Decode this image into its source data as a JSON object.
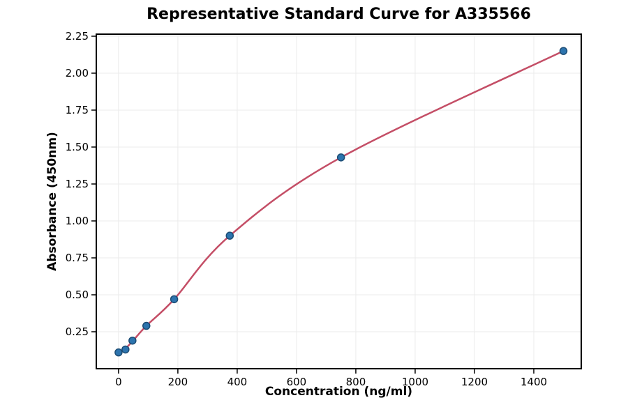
{
  "chart_data": {
    "type": "scatter",
    "title": "Representative Standard Curve for A335566",
    "xlabel": "Concentration (ng/ml)",
    "ylabel": "Absorbance (450nm)",
    "grid": true,
    "legend": "none",
    "xlim": [
      -75,
      1560
    ],
    "ylim": [
      0,
      2.264
    ],
    "x_ticks": [
      0,
      200,
      400,
      600,
      800,
      1000,
      1200,
      1400
    ],
    "x_tick_labels": [
      "0",
      "200",
      "400",
      "600",
      "800",
      "1000",
      "1200",
      "1400"
    ],
    "y_ticks": [
      0.25,
      0.5,
      0.75,
      1.0,
      1.25,
      1.5,
      1.75,
      2.0,
      2.25
    ],
    "y_tick_labels": [
      "0.25",
      "0.50",
      "0.75",
      "1.00",
      "1.25",
      "1.50",
      "1.75",
      "2.00",
      "2.25"
    ],
    "colors": {
      "grid": "#ebebeb",
      "axis": "#000000",
      "marker_fill": "#2d74ae",
      "marker_edge": "#1c4c74",
      "curve": "#c44e66"
    },
    "series": [
      {
        "name": "standard-points",
        "kind": "scatter",
        "x": [
          0,
          23.4,
          46.9,
          93.8,
          187.5,
          375,
          750,
          1500
        ],
        "y": [
          0.11,
          0.13,
          0.19,
          0.29,
          0.47,
          0.9,
          1.43,
          2.15
        ]
      },
      {
        "name": "fit-curve",
        "kind": "line",
        "x": [
          20,
          46.9,
          93.8,
          187.5,
          375,
          750,
          1500
        ],
        "y": [
          0.128,
          0.185,
          0.29,
          0.47,
          0.9,
          1.43,
          2.15
        ]
      }
    ]
  }
}
